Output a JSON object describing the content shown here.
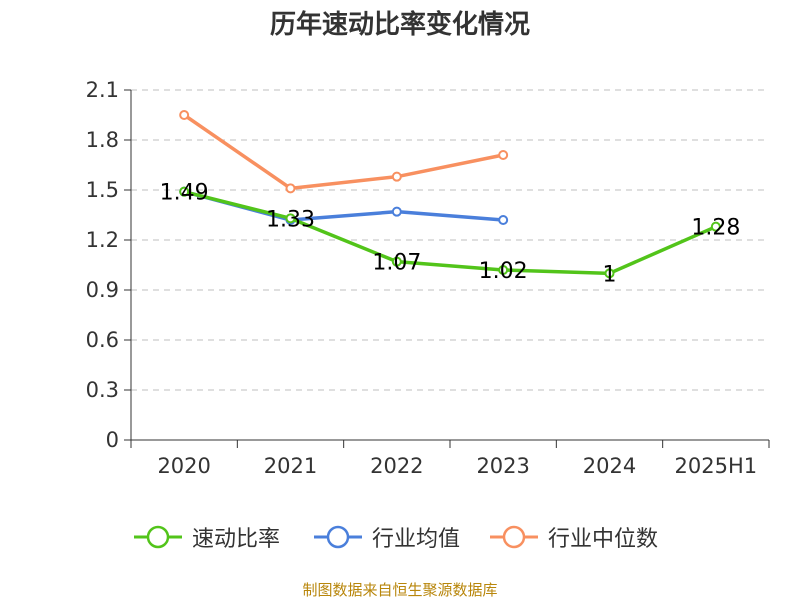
{
  "chart_data": {
    "type": "line",
    "title": "历年速动比率变化情况",
    "categories": [
      "2020",
      "2021",
      "2022",
      "2023",
      "2024",
      "2025H1"
    ],
    "ylim": [
      0,
      2.1
    ],
    "yticks": [
      "0",
      "0.3",
      "0.6",
      "0.9",
      "1.2",
      "1.5",
      "1.8",
      "2.1"
    ],
    "grid": true,
    "legend_position": "bottom",
    "series": [
      {
        "name": "速动比率",
        "color": "#52c41a",
        "values": [
          1.49,
          1.33,
          1.07,
          1.02,
          1,
          1.28
        ],
        "labels": [
          "1.49",
          "1.33",
          "1.07",
          "1.02",
          "1",
          "1.28"
        ]
      },
      {
        "name": "行业均值",
        "color": "#4a7fdb",
        "values": [
          1.49,
          1.32,
          1.37,
          1.32,
          null,
          null
        ]
      },
      {
        "name": "行业中位数",
        "color": "#f89060",
        "values": [
          1.95,
          1.51,
          1.58,
          1.71,
          null,
          null
        ]
      }
    ]
  },
  "source_note": "制图数据来自恒生聚源数据库"
}
